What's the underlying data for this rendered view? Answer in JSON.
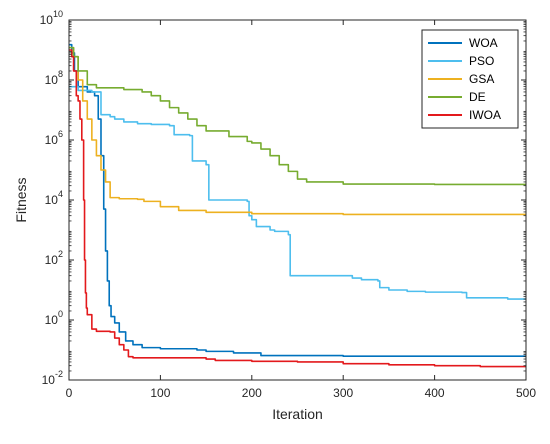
{
  "chart_data": {
    "type": "line",
    "xlabel": "Iteration",
    "ylabel": "Fitness",
    "xlim": [
      0,
      500
    ],
    "ylim": [
      0.01,
      10000000000
    ],
    "yscale": "log",
    "x_ticks": [
      {
        "value": 0,
        "label": "0"
      },
      {
        "value": 100,
        "label": "100"
      },
      {
        "value": 200,
        "label": "200"
      },
      {
        "value": 300,
        "label": "300"
      },
      {
        "value": 400,
        "label": "400"
      },
      {
        "value": 500,
        "label": "500"
      }
    ],
    "y_ticks": [
      {
        "value": 0.01,
        "base": "10",
        "exp": "-2"
      },
      {
        "value": 1,
        "base": "10",
        "exp": "0"
      },
      {
        "value": 100,
        "base": "10",
        "exp": "2"
      },
      {
        "value": 10000,
        "base": "10",
        "exp": "4"
      },
      {
        "value": 1000000,
        "base": "10",
        "exp": "6"
      },
      {
        "value": 100000000,
        "base": "10",
        "exp": "8"
      },
      {
        "value": 10000000000,
        "base": "10",
        "exp": "10"
      }
    ],
    "grid": false,
    "legend_position": "top-right",
    "series": [
      {
        "name": "WOA",
        "color": "#0072BD",
        "points": [
          [
            0,
            1500000000
          ],
          [
            3,
            800000000
          ],
          [
            6,
            200000000
          ],
          [
            10,
            60000000
          ],
          [
            20,
            40000000
          ],
          [
            28,
            30000000
          ],
          [
            32,
            5000000
          ],
          [
            35,
            300000
          ],
          [
            38,
            5000
          ],
          [
            40,
            200
          ],
          [
            42,
            20
          ],
          [
            44,
            3
          ],
          [
            46,
            1.3
          ],
          [
            50,
            0.8
          ],
          [
            55,
            0.4
          ],
          [
            62,
            0.2
          ],
          [
            70,
            0.15
          ],
          [
            80,
            0.12
          ],
          [
            100,
            0.11
          ],
          [
            140,
            0.1
          ],
          [
            150,
            0.09
          ],
          [
            180,
            0.08
          ],
          [
            210,
            0.065
          ],
          [
            300,
            0.062
          ],
          [
            500,
            0.06
          ]
        ]
      },
      {
        "name": "PSO",
        "color": "#4DBEEE",
        "points": [
          [
            0,
            60000000
          ],
          [
            10,
            45000000
          ],
          [
            25,
            40000000
          ],
          [
            35,
            7000000
          ],
          [
            45,
            6000000
          ],
          [
            50,
            5000000
          ],
          [
            60,
            4000000
          ],
          [
            75,
            3500000
          ],
          [
            90,
            3300000
          ],
          [
            110,
            3000000
          ],
          [
            115,
            1500000
          ],
          [
            132,
            1400000
          ],
          [
            135,
            200000
          ],
          [
            150,
            150000
          ],
          [
            153,
            10000
          ],
          [
            195,
            9000
          ],
          [
            197,
            3000
          ],
          [
            200,
            2200
          ],
          [
            205,
            1300
          ],
          [
            220,
            1000
          ],
          [
            225,
            900
          ],
          [
            240,
            700
          ],
          [
            242,
            30
          ],
          [
            300,
            30
          ],
          [
            310,
            25
          ],
          [
            320,
            22
          ],
          [
            338,
            20
          ],
          [
            340,
            12
          ],
          [
            350,
            10
          ],
          [
            370,
            9
          ],
          [
            390,
            8.5
          ],
          [
            430,
            8.2
          ],
          [
            435,
            5.5
          ],
          [
            480,
            5
          ],
          [
            500,
            5
          ]
        ]
      },
      {
        "name": "GSA",
        "color": "#EDB120",
        "points": [
          [
            0,
            1200000000
          ],
          [
            5,
            600000000
          ],
          [
            10,
            100000000
          ],
          [
            15,
            20000000
          ],
          [
            20,
            5000000
          ],
          [
            25,
            1000000
          ],
          [
            30,
            300000
          ],
          [
            35,
            100000
          ],
          [
            40,
            40000
          ],
          [
            45,
            12000
          ],
          [
            55,
            11000
          ],
          [
            75,
            10500
          ],
          [
            82,
            9000
          ],
          [
            100,
            6000
          ],
          [
            120,
            4500
          ],
          [
            150,
            3900
          ],
          [
            200,
            3500
          ],
          [
            300,
            3300
          ],
          [
            500,
            3200
          ]
        ]
      },
      {
        "name": "DE",
        "color": "#77AC30",
        "points": [
          [
            0,
            1200000000
          ],
          [
            5,
            600000000
          ],
          [
            10,
            200000000
          ],
          [
            20,
            70000000
          ],
          [
            30,
            55000000
          ],
          [
            60,
            48000000
          ],
          [
            80,
            40000000
          ],
          [
            90,
            30000000
          ],
          [
            100,
            20000000
          ],
          [
            110,
            12000000
          ],
          [
            120,
            8000000
          ],
          [
            130,
            5000000
          ],
          [
            140,
            3000000
          ],
          [
            150,
            2000000
          ],
          [
            175,
            1300000
          ],
          [
            195,
            900000
          ],
          [
            200,
            800000
          ],
          [
            210,
            500000
          ],
          [
            220,
            300000
          ],
          [
            230,
            150000
          ],
          [
            240,
            90000
          ],
          [
            250,
            50000
          ],
          [
            260,
            40000
          ],
          [
            300,
            34000
          ],
          [
            400,
            33000
          ],
          [
            500,
            33000
          ]
        ]
      },
      {
        "name": "IWOA",
        "color": "#E3191C",
        "points": [
          [
            0,
            1000000000
          ],
          [
            3,
            600000000
          ],
          [
            5,
            200000000
          ],
          [
            8,
            30000000
          ],
          [
            10,
            20000000
          ],
          [
            12,
            5000000
          ],
          [
            14,
            1000000
          ],
          [
            16,
            10000
          ],
          [
            17,
            100
          ],
          [
            18,
            8
          ],
          [
            19,
            2.5
          ],
          [
            20,
            1.5
          ],
          [
            25,
            0.5
          ],
          [
            30,
            0.42
          ],
          [
            45,
            0.4
          ],
          [
            50,
            0.25
          ],
          [
            55,
            0.15
          ],
          [
            60,
            0.1
          ],
          [
            65,
            0.06
          ],
          [
            70,
            0.055
          ],
          [
            150,
            0.05
          ],
          [
            160,
            0.045
          ],
          [
            200,
            0.042
          ],
          [
            250,
            0.04
          ],
          [
            300,
            0.035
          ],
          [
            350,
            0.032
          ],
          [
            400,
            0.03
          ],
          [
            450,
            0.028
          ],
          [
            500,
            0.027
          ]
        ]
      }
    ]
  }
}
